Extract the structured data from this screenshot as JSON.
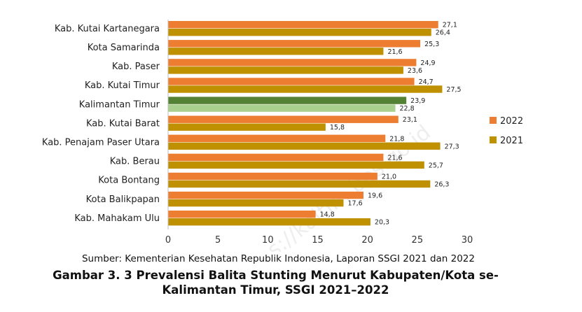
{
  "chart_data": {
    "type": "bar",
    "orientation": "horizontal",
    "categories": [
      "Kab. Kutai Kartanegara",
      "Kota Samarinda",
      "Kab. Paser",
      "Kab. Kutai Timur",
      "Kalimantan Timur",
      "Kab. Kutai Barat",
      "Kab. Penajam Paser Utara",
      "Kab. Berau",
      "Kota Bontang",
      "Kota Balikpapan",
      "Kab. Mahakam Ulu"
    ],
    "series": [
      {
        "name": "2022",
        "color": "#ED7D31",
        "values": [
          27.1,
          25.3,
          24.9,
          24.7,
          23.9,
          23.1,
          21.8,
          21.6,
          21.0,
          19.6,
          14.8
        ],
        "value_labels": [
          "27,1",
          "25,3",
          "24,9",
          "24,7",
          "23,9",
          "23,1",
          "21,8",
          "21,6",
          "21,0",
          "19,6",
          "14,8"
        ]
      },
      {
        "name": "2021",
        "color": "#BF9000",
        "values": [
          26.4,
          21.6,
          23.6,
          27.5,
          22.8,
          15.8,
          27.3,
          25.7,
          26.3,
          17.6,
          20.3
        ],
        "value_labels": [
          "26,4",
          "21,6",
          "23,6",
          "27,5",
          "22,8",
          "15,8",
          "27,3",
          "25,7",
          "26,3",
          "17,6",
          "20,3"
        ]
      }
    ],
    "highlight": {
      "category": "Kalimantan Timur",
      "color_2022": "#548235",
      "color_2021": "#A9D08E"
    },
    "xlim": [
      0,
      30
    ],
    "xticks": [
      "0",
      "5",
      "10",
      "15",
      "20",
      "25",
      "30"
    ],
    "xtick_values": [
      0,
      5,
      10,
      15,
      20,
      25,
      30
    ],
    "grid": false,
    "legend": {
      "position": "right",
      "entries": [
        "2022",
        "2021"
      ]
    },
    "watermark": "https://kaltim.bps.go.id"
  },
  "caption": {
    "source": "Sumber: Kementerian Kesehatan Republik Indonesia, Laporan SSGI 2021 dan 2022",
    "title_line1": "Gambar 3. 3 Prevalensi Balita Stunting Menurut Kabupaten/Kota se-",
    "title_line2": "Kalimantan Timur, SSGI 2021–2022"
  }
}
